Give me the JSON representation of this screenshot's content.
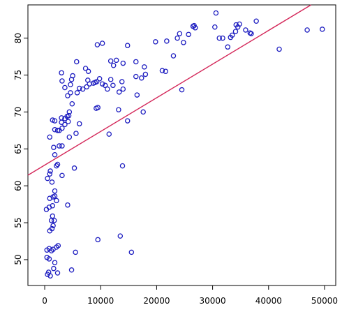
{
  "chart_data": {
    "type": "scatter",
    "title": "",
    "xlabel": "",
    "ylabel": "",
    "xlim": [
      -3000,
      52000
    ],
    "ylim": [
      46.5,
      84.5
    ],
    "x_ticks": [
      0,
      10000,
      20000,
      30000,
      40000,
      50000
    ],
    "x_tick_labels": [
      "0",
      "10000",
      "20000",
      "30000",
      "40000",
      "50000"
    ],
    "y_ticks": [
      50,
      55,
      60,
      65,
      70,
      75,
      80
    ],
    "y_tick_labels": [
      "50",
      "55",
      "60",
      "65",
      "70",
      "75",
      "80"
    ],
    "grid": false,
    "point_color": "#1c1cc0",
    "line_color": "#d4285a",
    "series": [
      {
        "points": [
          [
            500,
            48.0
          ],
          [
            700,
            48.3
          ],
          [
            1000,
            47.8
          ],
          [
            1600,
            48.8
          ],
          [
            2300,
            48.2
          ],
          [
            4800,
            48.6
          ],
          [
            400,
            50.3
          ],
          [
            800,
            50.1
          ],
          [
            1800,
            49.6
          ],
          [
            400,
            51.3
          ],
          [
            800,
            51.5
          ],
          [
            1200,
            51.2
          ],
          [
            1500,
            51.4
          ],
          [
            2100,
            51.7
          ],
          [
            2400,
            51.9
          ],
          [
            5500,
            51.0
          ],
          [
            9500,
            52.7
          ],
          [
            13500,
            53.2
          ],
          [
            15500,
            51.0
          ],
          [
            900,
            53.9
          ],
          [
            1300,
            54.2
          ],
          [
            1500,
            54.6
          ],
          [
            1700,
            55.3
          ],
          [
            1400,
            55.9
          ],
          [
            1200,
            55.3
          ],
          [
            300,
            56.8
          ],
          [
            800,
            57.1
          ],
          [
            1400,
            57.3
          ],
          [
            4100,
            57.4
          ],
          [
            900,
            58.3
          ],
          [
            1500,
            58.5
          ],
          [
            2100,
            58.0
          ],
          [
            1800,
            58.6
          ],
          [
            1800,
            59.3
          ],
          [
            500,
            61.0
          ],
          [
            900,
            61.6
          ],
          [
            3100,
            61.4
          ],
          [
            1300,
            60.5
          ],
          [
            1000,
            62.0
          ],
          [
            2100,
            62.7
          ],
          [
            2300,
            62.9
          ],
          [
            5300,
            62.4
          ],
          [
            13900,
            62.7
          ],
          [
            1800,
            64.2
          ],
          [
            2600,
            65.4
          ],
          [
            3100,
            65.4
          ],
          [
            1600,
            65.2
          ],
          [
            900,
            66.6
          ],
          [
            4400,
            66.6
          ],
          [
            5600,
            67.1
          ],
          [
            11500,
            67.0
          ],
          [
            1800,
            67.6
          ],
          [
            2300,
            67.5
          ],
          [
            2600,
            67.5
          ],
          [
            3100,
            67.8
          ],
          [
            3000,
            68.6
          ],
          [
            3600,
            68.3
          ],
          [
            4200,
            68.7
          ],
          [
            6200,
            68.4
          ],
          [
            14800,
            68.8
          ],
          [
            1800,
            68.8
          ],
          [
            1400,
            68.9
          ],
          [
            3000,
            69.2
          ],
          [
            3600,
            69.1
          ],
          [
            4000,
            69.4
          ],
          [
            4300,
            69.5
          ],
          [
            4400,
            70.0
          ],
          [
            9500,
            70.6
          ],
          [
            9200,
            70.5
          ],
          [
            13200,
            70.3
          ],
          [
            17600,
            70.0
          ],
          [
            4900,
            71.1
          ],
          [
            4100,
            72.2
          ],
          [
            4600,
            72.6
          ],
          [
            5800,
            72.6
          ],
          [
            6200,
            73.2
          ],
          [
            6800,
            73.1
          ],
          [
            7500,
            73.4
          ],
          [
            9000,
            74.0
          ],
          [
            10300,
            73.8
          ],
          [
            10800,
            73.6
          ],
          [
            11200,
            73.1
          ],
          [
            12200,
            73.6
          ],
          [
            13300,
            72.7
          ],
          [
            14000,
            73.1
          ],
          [
            16500,
            72.3
          ],
          [
            24500,
            73.0
          ],
          [
            3600,
            73.3
          ],
          [
            4600,
            73.7
          ],
          [
            4800,
            74.4
          ],
          [
            5000,
            74.9
          ],
          [
            3100,
            74.2
          ],
          [
            3000,
            75.3
          ],
          [
            7300,
            75.9
          ],
          [
            7700,
            74.3
          ],
          [
            8000,
            73.8
          ],
          [
            8700,
            73.9
          ],
          [
            9300,
            74.1
          ],
          [
            9800,
            74.5
          ],
          [
            11800,
            74.4
          ],
          [
            13800,
            74.1
          ],
          [
            16300,
            74.8
          ],
          [
            17300,
            74.6
          ],
          [
            18000,
            75.1
          ],
          [
            21000,
            75.6
          ],
          [
            21600,
            75.5
          ],
          [
            23000,
            77.6
          ],
          [
            7800,
            75.5
          ],
          [
            9400,
            79.1
          ],
          [
            10300,
            79.3
          ],
          [
            5700,
            76.8
          ],
          [
            11800,
            76.9
          ],
          [
            12300,
            76.3
          ],
          [
            12800,
            77.0
          ],
          [
            14000,
            76.6
          ],
          [
            16300,
            76.8
          ],
          [
            17800,
            76.1
          ],
          [
            14800,
            79.0
          ],
          [
            19800,
            79.5
          ],
          [
            21800,
            79.6
          ],
          [
            23700,
            80.0
          ],
          [
            24100,
            80.6
          ],
          [
            24800,
            79.4
          ],
          [
            25700,
            80.5
          ],
          [
            26500,
            81.6
          ],
          [
            26900,
            81.4
          ],
          [
            26700,
            81.7
          ],
          [
            30400,
            81.5
          ],
          [
            31200,
            80.0
          ],
          [
            31800,
            80.0
          ],
          [
            32700,
            78.8
          ],
          [
            33200,
            80.1
          ],
          [
            33500,
            80.4
          ],
          [
            34100,
            80.9
          ],
          [
            34500,
            81.5
          ],
          [
            34800,
            81.9
          ],
          [
            34200,
            81.8
          ],
          [
            35900,
            81.1
          ],
          [
            36700,
            80.7
          ],
          [
            36900,
            80.6
          ],
          [
            37800,
            82.3
          ],
          [
            41900,
            78.5
          ],
          [
            30600,
            83.4
          ],
          [
            46900,
            81.1
          ],
          [
            49600,
            81.2
          ]
        ]
      }
    ],
    "regression_line": {
      "intercept": 62.8,
      "slope": 0.000456
    }
  }
}
